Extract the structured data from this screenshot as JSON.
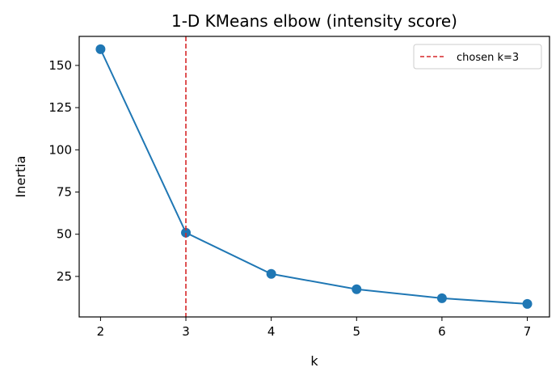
{
  "chart_data": {
    "type": "line",
    "title": "1-D KMeans elbow (intensity score)",
    "xlabel": "k",
    "ylabel": "Inertia",
    "x": [
      2,
      3,
      4,
      5,
      6,
      7
    ],
    "series": [
      {
        "values": [
          159.6,
          50.9,
          26.5,
          17.4,
          12.1,
          8.7
        ],
        "color": "#1f77b4",
        "marker": "circle"
      }
    ],
    "xlim": [
      1.75,
      7.26
    ],
    "ylim": [
      1.0,
      167.2
    ],
    "xticks": [
      2,
      3,
      4,
      5,
      6,
      7
    ],
    "yticks": [
      25,
      50,
      75,
      100,
      125,
      150
    ],
    "grid": false,
    "annotations": [
      {
        "type": "vline",
        "x": 3,
        "color": "#d62728",
        "style": "dashed",
        "label": "chosen k=3"
      }
    ],
    "legend": {
      "placement": "top-right",
      "entries": [
        "chosen k=3"
      ]
    }
  }
}
